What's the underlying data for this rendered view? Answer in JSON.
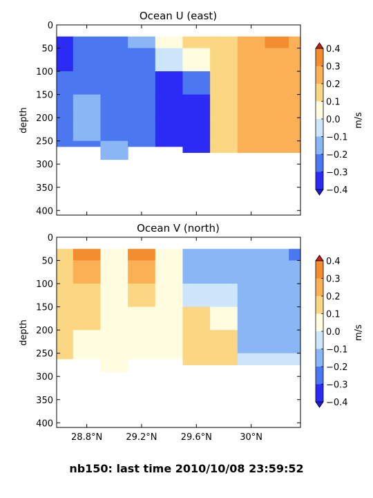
{
  "figure": {
    "suptitle": "nb150: last time 2010/10/08 23:59:52"
  },
  "colorbar": {
    "levels": [
      -0.4,
      -0.3,
      -0.2,
      -0.1,
      0.0,
      0.1,
      0.2,
      0.3,
      0.4
    ],
    "tick_labels": [
      "0.4",
      "0.3",
      "0.2",
      "0.1",
      "0.0",
      "−0.1",
      "−0.2",
      "−0.3",
      "−0.4"
    ],
    "band_colors": [
      "#2b2bf5",
      "#4b78f0",
      "#8ab6f5",
      "#cde6fb",
      "#fffce0",
      "#fbd783",
      "#fbb055",
      "#f48d2f"
    ],
    "under_color": "#1d1ddc",
    "over_color": "#c61f14",
    "unit_label": "m/s"
  },
  "chart_data": [
    {
      "type": "heatmap",
      "title": "Ocean U (east)",
      "ylabel": "depth",
      "xlabel": "",
      "ylim": [
        410,
        0
      ],
      "yticks": [
        "0",
        "50",
        "100",
        "150",
        "200",
        "250",
        "300",
        "350",
        "400"
      ],
      "xlim": [
        28.58,
        30.36
      ],
      "xticks": [
        28.8,
        29.2,
        29.6,
        30.0
      ],
      "xtick_labels": [
        "",
        "",
        "",
        ""
      ],
      "colorbar_label": "m/s",
      "x_sections": [
        28.6,
        28.8,
        29.0,
        29.2,
        29.4,
        29.6,
        29.8,
        30.0,
        30.2,
        30.35
      ],
      "depth_rows": [
        25,
        50,
        100,
        150,
        200,
        250
      ],
      "values_ms": [
        [
          -0.35,
          -0.25,
          -0.2,
          -0.15,
          0.05,
          0.15,
          0.2,
          0.25,
          0.35,
          0.3
        ],
        [
          -0.35,
          -0.25,
          -0.25,
          -0.25,
          -0.05,
          0.1,
          0.15,
          0.25,
          0.3,
          0.25
        ],
        [
          -0.25,
          -0.2,
          -0.2,
          -0.25,
          -0.3,
          -0.25,
          0.15,
          0.25,
          0.25,
          0.25
        ],
        [
          -0.2,
          -0.15,
          -0.2,
          -0.2,
          -0.4,
          -0.35,
          0.15,
          0.25,
          0.25,
          0.25
        ],
        [
          -0.2,
          -0.15,
          -0.2,
          -0.25,
          -0.4,
          -0.4,
          0.15,
          0.25,
          0.25,
          0.25
        ],
        [
          -0.2,
          -0.2,
          -0.15,
          -0.2,
          -0.4,
          -0.4,
          0.15,
          0.3,
          0.25,
          0.25
        ]
      ],
      "data_bottom_depth": [
        262,
        262,
        290,
        262,
        262,
        275,
        275,
        275,
        275,
        275
      ]
    },
    {
      "type": "heatmap",
      "title": "Ocean V (north)",
      "ylabel": "depth",
      "xlabel": "",
      "ylim": [
        410,
        0
      ],
      "yticks": [
        "0",
        "50",
        "100",
        "150",
        "200",
        "250",
        "300",
        "350",
        "400"
      ],
      "xlim": [
        28.58,
        30.36
      ],
      "xticks": [
        28.8,
        29.2,
        29.6,
        30.0
      ],
      "xtick_labels": [
        "28.8°N",
        "29.2°N",
        "29.6°N",
        "30°N"
      ],
      "colorbar_label": "m/s",
      "x_sections": [
        28.6,
        28.8,
        29.0,
        29.2,
        29.4,
        29.6,
        29.8,
        30.0,
        30.2,
        30.35
      ],
      "depth_rows": [
        25,
        50,
        100,
        150,
        200,
        250
      ],
      "values_ms": [
        [
          0.2,
          0.35,
          0.1,
          0.35,
          0.05,
          -0.1,
          -0.15,
          -0.15,
          -0.15,
          -0.2
        ],
        [
          0.15,
          0.3,
          0.05,
          0.3,
          0.05,
          -0.1,
          -0.15,
          -0.15,
          -0.1,
          -0.15
        ],
        [
          0.15,
          0.2,
          0.05,
          0.15,
          0.05,
          -0.05,
          -0.05,
          -0.15,
          -0.15,
          -0.15
        ],
        [
          0.15,
          0.15,
          0.05,
          0.1,
          0.05,
          0.15,
          0.1,
          -0.15,
          -0.15,
          -0.1
        ],
        [
          0.15,
          0.1,
          0.05,
          0.1,
          0.05,
          0.15,
          0.15,
          -0.15,
          -0.15,
          -0.1
        ],
        [
          0.15,
          0.05,
          0.05,
          0.05,
          0.05,
          0.15,
          0.15,
          -0.05,
          -0.05,
          -0.05
        ]
      ],
      "data_bottom_depth": [
        262,
        262,
        290,
        262,
        262,
        275,
        275,
        275,
        275,
        275
      ]
    }
  ]
}
